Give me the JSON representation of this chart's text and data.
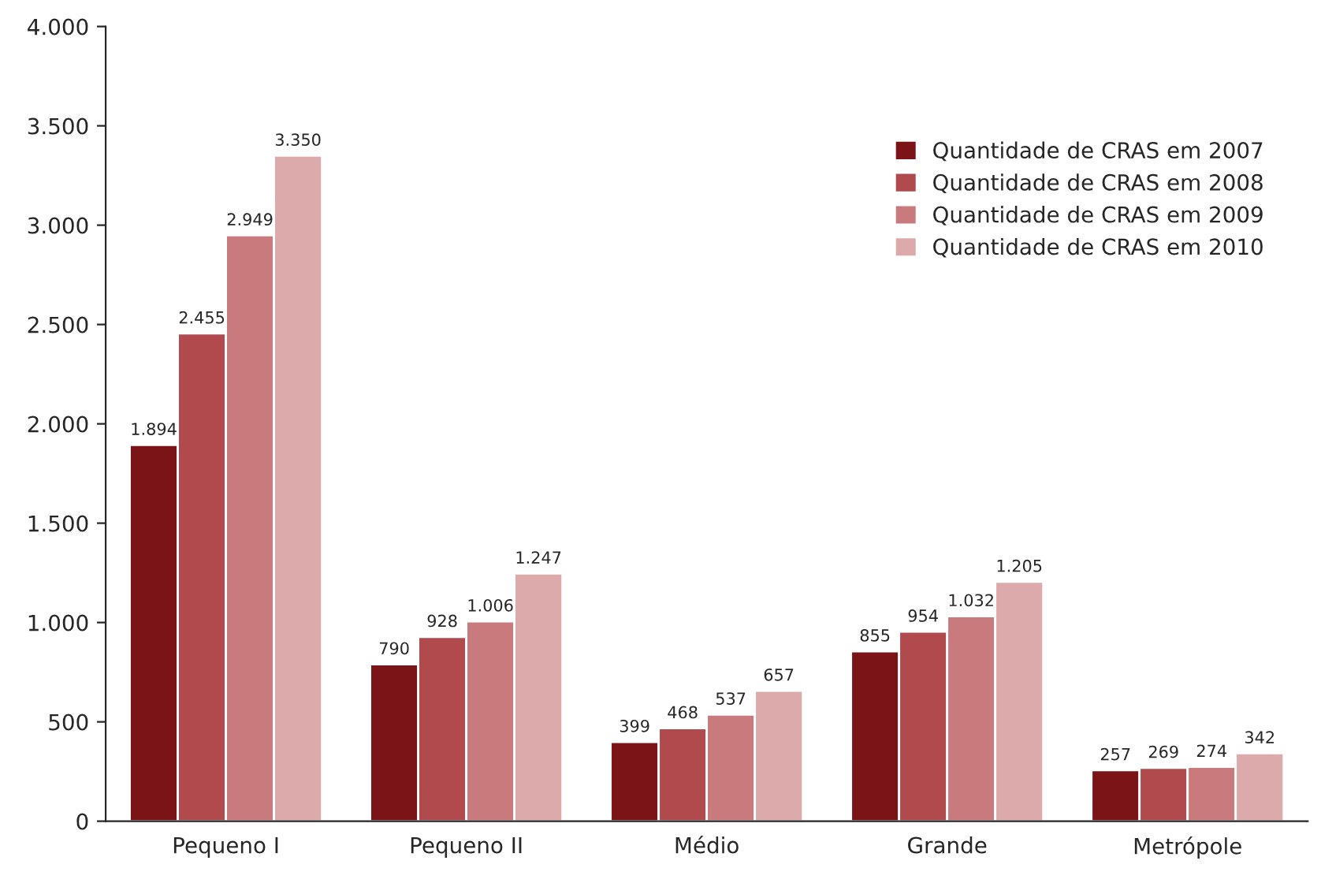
{
  "chart_data": {
    "type": "bar",
    "categories": [
      "Pequeno I",
      "Pequeno II",
      "Médio",
      "Grande",
      "Metrópole"
    ],
    "series": [
      {
        "name": "Quantidade de CRAS em 2007",
        "color": "#7b1416",
        "values": [
          1894,
          790,
          399,
          855,
          257
        ],
        "value_labels": [
          "1.894",
          "790",
          "399",
          "855",
          "257"
        ]
      },
      {
        "name": "Quantidade de CRAS em 2008",
        "color": "#b04a4c",
        "values": [
          2455,
          928,
          468,
          954,
          269
        ],
        "value_labels": [
          "2.455",
          "928",
          "468",
          "954",
          "269"
        ]
      },
      {
        "name": "Quantidade de CRAS em 2009",
        "color": "#c97a7c",
        "values": [
          2949,
          1006,
          537,
          1032,
          274
        ],
        "value_labels": [
          "2.949",
          "1.006",
          "537",
          "1.032",
          "274"
        ]
      },
      {
        "name": "Quantidade de CRAS em 2010",
        "color": "#dcaaab",
        "values": [
          3350,
          1247,
          657,
          1205,
          342
        ],
        "value_labels": [
          "3.350",
          "1.247",
          "657",
          "1.205",
          "342"
        ]
      }
    ],
    "ylim": [
      0,
      4000
    ],
    "yticks": [
      {
        "value": 0,
        "label": "0"
      },
      {
        "value": 500,
        "label": "500"
      },
      {
        "value": 1000,
        "label": "1.000"
      },
      {
        "value": 1500,
        "label": "1.500"
      },
      {
        "value": 2000,
        "label": "2.000"
      },
      {
        "value": 2500,
        "label": "2.500"
      },
      {
        "value": 3000,
        "label": "3.000"
      },
      {
        "value": 3500,
        "label": "3.500"
      },
      {
        "value": 4000,
        "label": "4.000"
      }
    ],
    "grid": false,
    "legend": "top right"
  }
}
